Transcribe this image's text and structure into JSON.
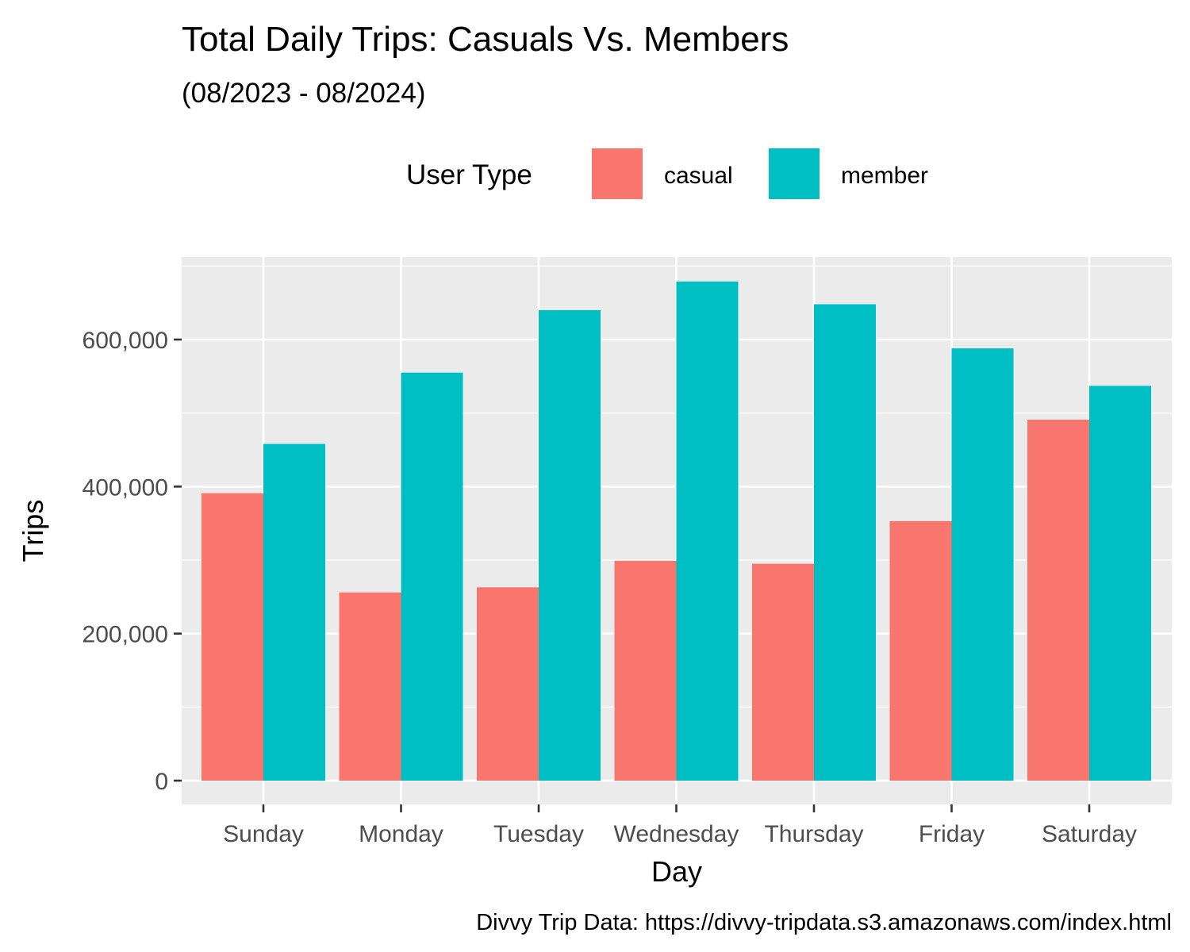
{
  "chart_data": {
    "type": "bar",
    "title": "Total Daily Trips: Casuals Vs. Members",
    "subtitle": "(08/2023 - 08/2024)",
    "xlabel": "Day",
    "ylabel": "Trips",
    "caption": "Divvy Trip Data: https://divvy-tripdata.s3.amazonaws.com/index.html",
    "categories": [
      "Sunday",
      "Monday",
      "Tuesday",
      "Wednesday",
      "Thursday",
      "Friday",
      "Saturday"
    ],
    "series": [
      {
        "name": "casual",
        "color": "#F8766D",
        "values": [
          391000,
          256000,
          263000,
          299000,
          295000,
          353000,
          491000
        ]
      },
      {
        "name": "member",
        "color": "#00BFC4",
        "values": [
          458000,
          555000,
          640000,
          679000,
          648000,
          588000,
          537000
        ]
      }
    ],
    "legend": {
      "title": "User Type",
      "position": "top"
    },
    "ylim": [
      0,
      700000
    ],
    "yticks": [
      0,
      200000,
      400000,
      600000
    ],
    "ytick_labels": [
      "0",
      "200,000",
      "400,000",
      "600,000"
    ],
    "grid": true,
    "panel_background": "#EBEBEB",
    "grid_color": "#FFFFFF"
  }
}
